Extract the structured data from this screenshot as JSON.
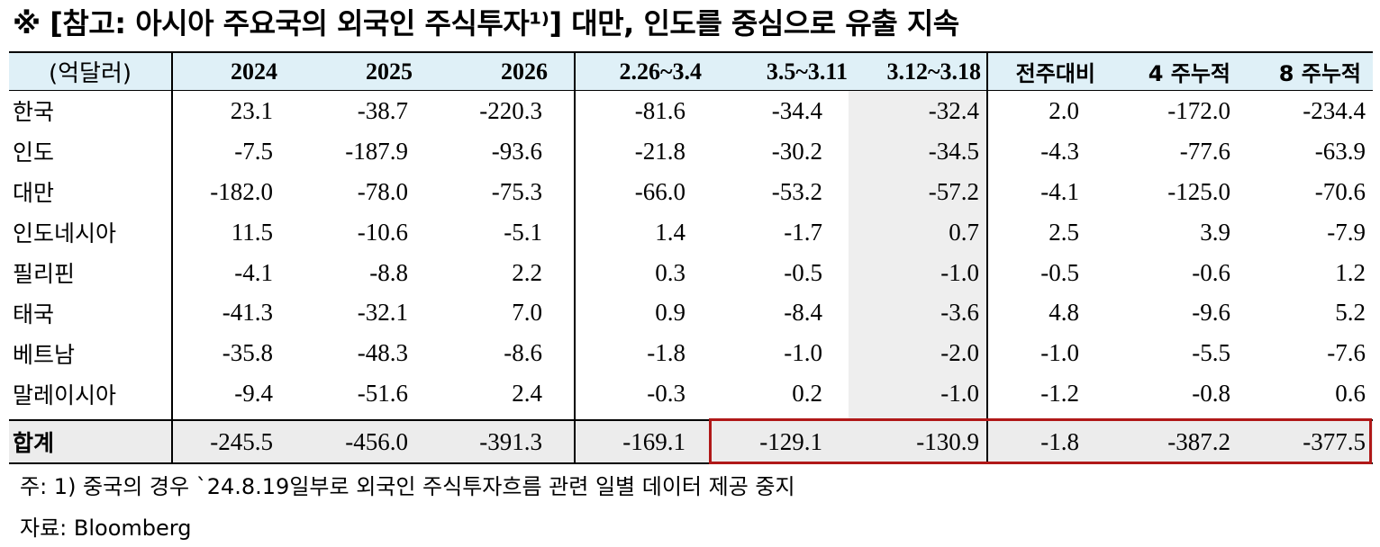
{
  "title": "※ [참고: 아시아 주요국의 외국인 주식투자¹⁾] 대만, 인도를 중심으로 유출 지속",
  "table": {
    "unit_label": "(억달러)",
    "columns": [
      "2024",
      "2025",
      "2026",
      "2.26~3.4",
      "3.5~3.11",
      "3.12~3.18",
      "전주대비",
      "4 주누적",
      "8 주누적"
    ],
    "rows": [
      {
        "country": "한국",
        "values": [
          "23.1",
          "-38.7",
          "-220.3",
          "-81.6",
          "-34.4",
          "-32.4",
          "2.0",
          "-172.0",
          "-234.4"
        ]
      },
      {
        "country": "인도",
        "values": [
          "-7.5",
          "-187.9",
          "-93.6",
          "-21.8",
          "-30.2",
          "-34.5",
          "-4.3",
          "-77.6",
          "-63.9"
        ]
      },
      {
        "country": "대만",
        "values": [
          "-182.0",
          "-78.0",
          "-75.3",
          "-66.0",
          "-53.2",
          "-57.2",
          "-4.1",
          "-125.0",
          "-70.6"
        ]
      },
      {
        "country": "인도네시아",
        "values": [
          "11.5",
          "-10.6",
          "-5.1",
          "1.4",
          "-1.7",
          "0.7",
          "2.5",
          "3.9",
          "-7.9"
        ]
      },
      {
        "country": "필리핀",
        "values": [
          "-4.1",
          "-8.8",
          "2.2",
          "0.3",
          "-0.5",
          "-1.0",
          "-0.5",
          "-0.6",
          "1.2"
        ]
      },
      {
        "country": "태국",
        "values": [
          "-41.3",
          "-32.1",
          "7.0",
          "0.9",
          "-8.4",
          "-3.6",
          "4.8",
          "-9.6",
          "5.2"
        ]
      },
      {
        "country": "베트남",
        "values": [
          "-35.8",
          "-48.3",
          "-8.6",
          "-1.8",
          "-1.0",
          "-2.0",
          "-1.0",
          "-5.5",
          "-7.6"
        ]
      },
      {
        "country": "말레이시아",
        "values": [
          "-9.4",
          "-51.6",
          "2.4",
          "-0.3",
          "0.2",
          "-1.0",
          "-1.2",
          "-0.8",
          "0.6"
        ]
      }
    ],
    "total": {
      "country": "합계",
      "values": [
        "-245.5",
        "-456.0",
        "-391.3",
        "-169.1",
        "-129.1",
        "-130.9",
        "-1.8",
        "-387.2",
        "-377.5"
      ]
    }
  },
  "notes": {
    "footnote": "주: 1) 중국의 경우 `24.8.19일부로 외국인 주식투자흐름 관련 일별 데이터 제공 중지",
    "source": "자료: Bloomberg"
  },
  "colors": {
    "header_bg": "#dff0f7",
    "total_bg": "#ececec",
    "highlight_border": "#b01818"
  }
}
